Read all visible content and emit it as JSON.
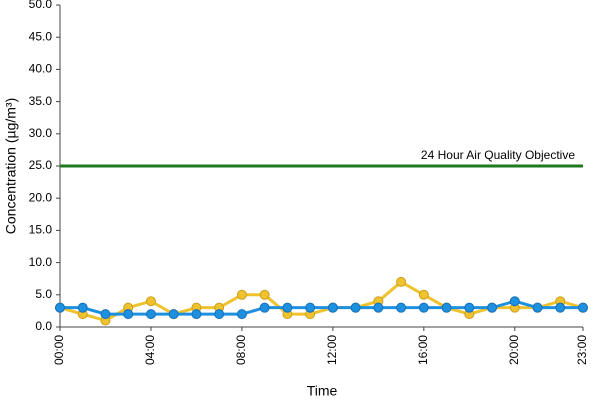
{
  "chart_data": {
    "type": "line",
    "categories": [
      "00:00",
      null,
      null,
      null,
      "04:00",
      null,
      null,
      null,
      "08:00",
      null,
      null,
      null,
      "12:00",
      null,
      null,
      null,
      "16:00",
      null,
      null,
      null,
      "20:00",
      null,
      null,
      "23:00"
    ],
    "series": [
      {
        "color": "#f0c22e",
        "values": [
          3,
          2,
          1,
          3,
          4,
          2,
          3,
          3,
          5,
          5,
          2,
          2,
          3,
          3,
          4,
          7,
          5,
          3,
          2,
          3,
          3,
          3,
          4,
          3
        ]
      },
      {
        "color": "#1e90e0",
        "values": [
          3,
          3,
          2,
          2,
          2,
          2,
          2,
          2,
          2,
          3,
          3,
          3,
          3,
          3,
          3,
          3,
          3,
          3,
          3,
          3,
          4,
          3,
          3,
          3
        ]
      }
    ],
    "objective": {
      "value": 25,
      "label": "24 Hour Air Quality Objective",
      "color": "#1f7a1f"
    },
    "ylim": [
      0,
      50
    ],
    "yticks": [
      {
        "value": 0,
        "label": "0.0"
      },
      {
        "value": 5,
        "label": "5.0"
      },
      {
        "value": 10,
        "label": "10.0"
      },
      {
        "value": 15,
        "label": "15.0"
      },
      {
        "value": 20,
        "label": "20.0"
      },
      {
        "value": 25,
        "label": "25.0"
      },
      {
        "value": 30,
        "label": "30.0"
      },
      {
        "value": 35,
        "label": "35.0"
      },
      {
        "value": 40,
        "label": "40.0"
      },
      {
        "value": 45,
        "label": "45.0"
      },
      {
        "value": 50,
        "label": "50.0"
      }
    ],
    "xlabel": "Time",
    "ylabel": "Concentration (µg/m³)"
  }
}
